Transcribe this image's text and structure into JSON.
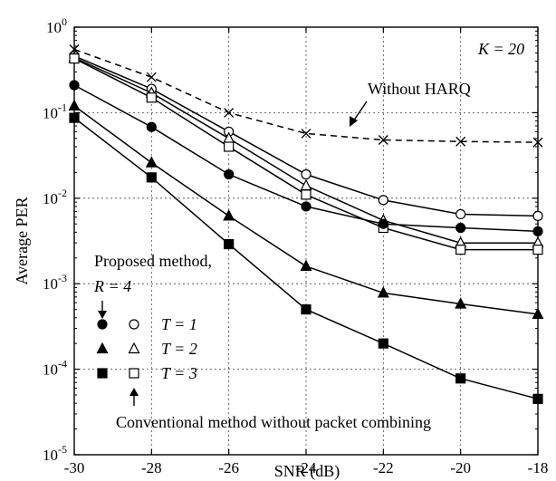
{
  "chart_data": {
    "type": "line",
    "xlabel": "SNR (dB)",
    "ylabel": "Average PER",
    "xlim": [
      -30,
      -18
    ],
    "ylim": [
      1e-05,
      1
    ],
    "yscale": "log",
    "grid": true,
    "x_ticks": [
      "-30",
      "-28",
      "-26",
      "-24",
      "-22",
      "-20",
      "-18"
    ],
    "x": [
      -30,
      -28,
      -26,
      -24,
      -22,
      -20,
      -18
    ],
    "series": [
      {
        "marker": "x",
        "linestyle": "dashed",
        "values": [
          0.55,
          0.26,
          0.1,
          0.057,
          0.048,
          0.046,
          0.045
        ]
      },
      {
        "marker": "circle-open",
        "linestyle": "solid",
        "values": [
          0.46,
          0.19,
          0.06,
          0.019,
          0.0095,
          0.0065,
          0.0062
        ]
      },
      {
        "marker": "triangle-open",
        "linestyle": "solid",
        "values": [
          0.44,
          0.17,
          0.05,
          0.014,
          0.0055,
          0.003,
          0.003
        ]
      },
      {
        "marker": "square-open",
        "linestyle": "solid",
        "values": [
          0.43,
          0.15,
          0.04,
          0.011,
          0.0045,
          0.0025,
          0.0025
        ]
      },
      {
        "marker": "circle-filled",
        "linestyle": "solid",
        "values": [
          0.21,
          0.068,
          0.019,
          0.008,
          0.005,
          0.0045,
          0.0041
        ]
      },
      {
        "marker": "triangle-filled",
        "linestyle": "solid",
        "values": [
          0.12,
          0.026,
          0.0062,
          0.0016,
          0.00078,
          0.00058,
          0.00044
        ]
      },
      {
        "marker": "square-filled",
        "linestyle": "solid",
        "values": [
          0.087,
          0.0175,
          0.0029,
          0.0005,
          0.0002,
          7.8e-05,
          4.5e-05
        ]
      }
    ],
    "annotations": {
      "k_label": "K = 20",
      "without_harq": "Without HARQ",
      "proposed": "Proposed method,",
      "r_label": "R = 4",
      "t1": "T = 1",
      "t2": "T = 2",
      "t3": "T = 3",
      "conventional": "Conventional method without packet combining"
    }
  }
}
